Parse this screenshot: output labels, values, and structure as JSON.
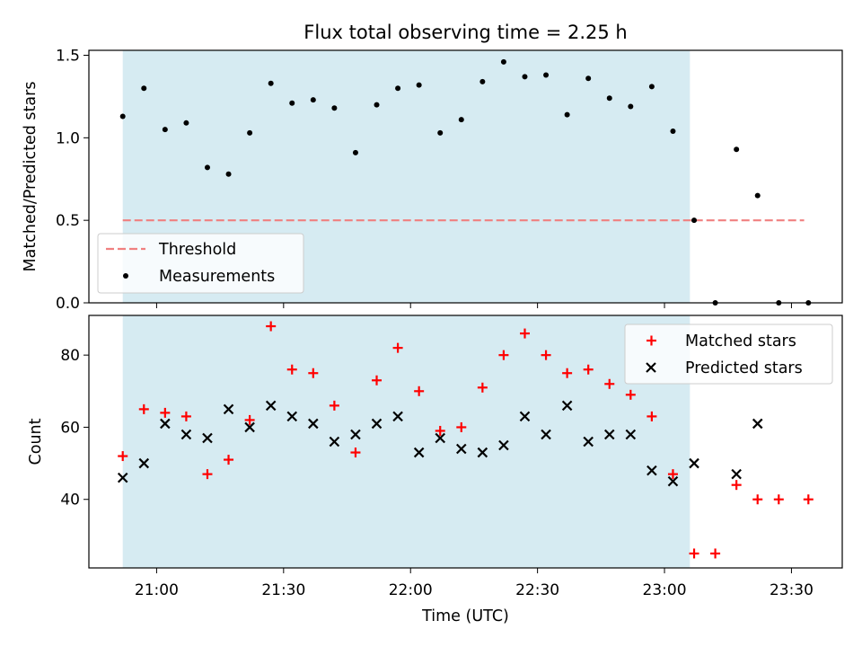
{
  "chart_data": [
    {
      "type": "scatter",
      "title": "Flux total observing time = 2.25 h",
      "xlabel": "",
      "ylabel": "Matched/Predicted stars",
      "ylim": [
        0,
        1.53
      ],
      "y_ticks": [
        "0.0",
        "0.5",
        "1.0",
        "1.5"
      ],
      "y_tick_values": [
        0,
        0.5,
        1.0,
        1.5
      ],
      "x_tick_labels_shown": false,
      "legend": {
        "placement": "lower-left",
        "entries": [
          "Threshold",
          "Measurements"
        ]
      },
      "colors": {
        "measurements": "#000000",
        "threshold": "#f08080",
        "observing_window": "#add8e6"
      },
      "observing_window": [
        "20:52",
        "23:06"
      ],
      "threshold": {
        "name": "Threshold",
        "y": 0.5,
        "x_range": [
          "20:52",
          "23:33"
        ]
      },
      "series": [
        {
          "name": "Measurements",
          "x": [
            "20:52",
            "20:57",
            "21:02",
            "21:07",
            "21:12",
            "21:17",
            "21:22",
            "21:27",
            "21:32",
            "21:37",
            "21:42",
            "21:47",
            "21:52",
            "21:57",
            "22:02",
            "22:07",
            "22:12",
            "22:17",
            "22:22",
            "22:27",
            "22:32",
            "22:37",
            "22:42",
            "22:47",
            "22:52",
            "22:57",
            "23:02",
            "23:07",
            "23:12",
            "23:17",
            "23:22",
            "23:27",
            "23:34"
          ],
          "values": [
            1.13,
            1.3,
            1.05,
            1.09,
            0.82,
            0.78,
            1.03,
            1.33,
            1.21,
            1.23,
            1.18,
            0.91,
            1.2,
            1.3,
            1.32,
            1.03,
            1.11,
            1.34,
            1.46,
            1.37,
            1.38,
            1.14,
            1.36,
            1.24,
            1.19,
            1.31,
            1.04,
            0.5,
            0.0,
            0.93,
            0.65,
            0.0,
            0.0
          ]
        }
      ]
    },
    {
      "type": "scatter",
      "title": "",
      "xlabel": "Time (UTC)",
      "ylabel": "Count",
      "ylim": [
        21,
        91
      ],
      "y_ticks": [
        "40",
        "60",
        "80"
      ],
      "y_tick_values": [
        40,
        60,
        80
      ],
      "xlim": [
        "20:44",
        "23:42"
      ],
      "x_ticks": [
        "21:00",
        "21:30",
        "22:00",
        "22:30",
        "23:00",
        "23:30"
      ],
      "legend": {
        "placement": "top-right",
        "entries": [
          "Matched stars",
          "Predicted stars"
        ]
      },
      "colors": {
        "matched": "#ff0000",
        "predicted": "#000000",
        "observing_window": "#add8e6"
      },
      "observing_window": [
        "20:52",
        "23:06"
      ],
      "series": [
        {
          "name": "Matched stars",
          "x": [
            "20:52",
            "20:57",
            "21:02",
            "21:07",
            "21:12",
            "21:17",
            "21:22",
            "21:27",
            "21:32",
            "21:37",
            "21:42",
            "21:47",
            "21:52",
            "21:57",
            "22:02",
            "22:07",
            "22:12",
            "22:17",
            "22:22",
            "22:27",
            "22:32",
            "22:37",
            "22:42",
            "22:47",
            "22:52",
            "22:57",
            "23:02",
            "23:07",
            "23:12",
            "23:17",
            "23:22",
            "23:27",
            "23:34"
          ],
          "values": [
            52,
            65,
            64,
            63,
            47,
            51,
            62,
            88,
            76,
            75,
            66,
            53,
            73,
            82,
            70,
            59,
            60,
            71,
            80,
            86,
            80,
            75,
            76,
            72,
            69,
            63,
            47,
            25,
            25,
            44,
            40,
            40,
            40
          ]
        },
        {
          "name": "Predicted stars",
          "x": [
            "20:52",
            "20:57",
            "21:02",
            "21:07",
            "21:12",
            "21:17",
            "21:22",
            "21:27",
            "21:32",
            "21:37",
            "21:42",
            "21:47",
            "21:52",
            "21:57",
            "22:02",
            "22:07",
            "22:12",
            "22:17",
            "22:22",
            "22:27",
            "22:32",
            "22:37",
            "22:42",
            "22:47",
            "22:52",
            "22:57",
            "23:02",
            "23:07",
            "23:17",
            "23:22"
          ],
          "values": [
            46,
            50,
            61,
            58,
            57,
            65,
            60,
            66,
            63,
            61,
            56,
            58,
            61,
            63,
            53,
            57,
            54,
            53,
            55,
            63,
            58,
            66,
            56,
            58,
            58,
            48,
            45,
            50,
            47,
            61
          ]
        }
      ]
    }
  ]
}
